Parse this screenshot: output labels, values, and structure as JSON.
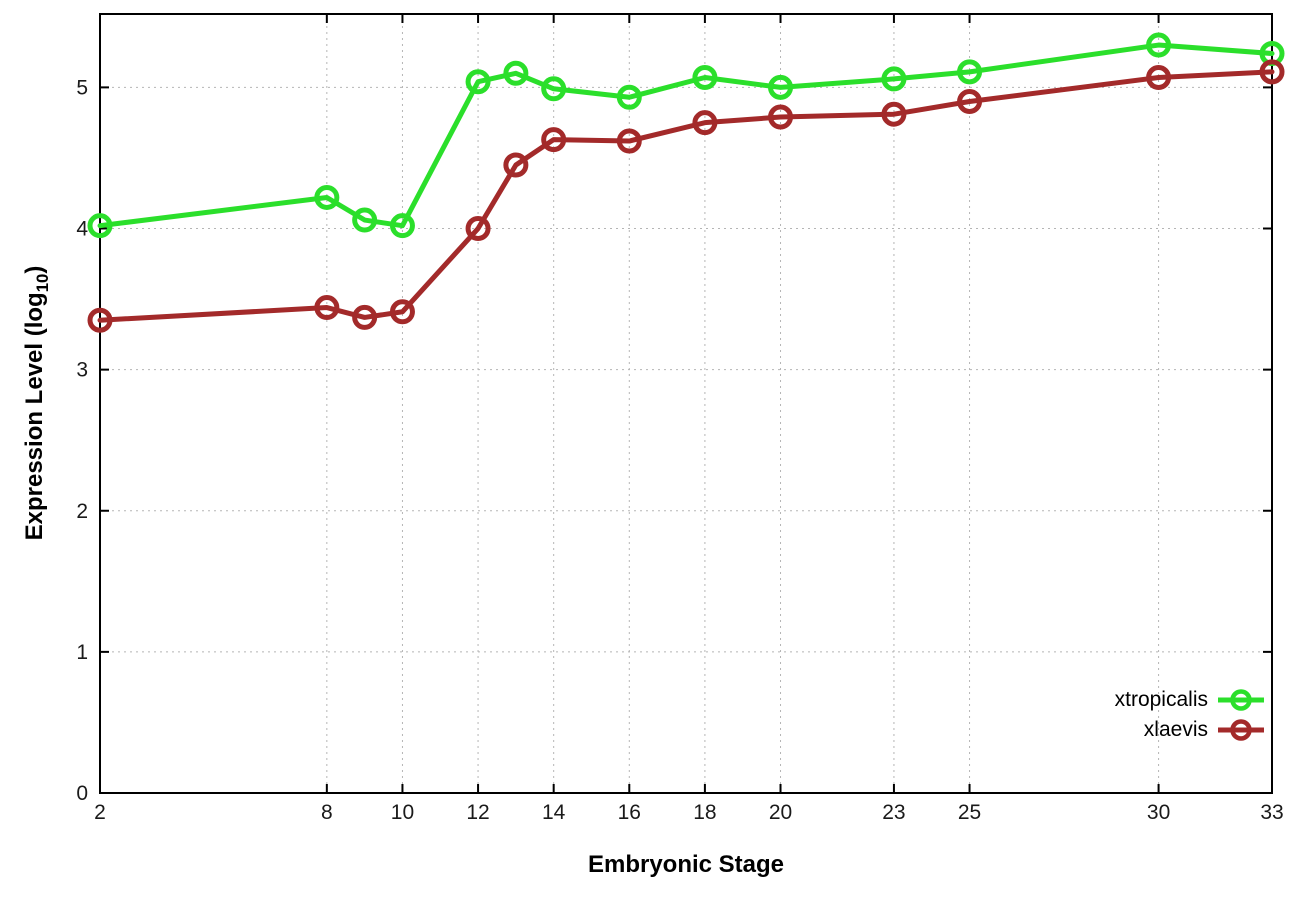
{
  "page": {
    "background": "#ffffff"
  },
  "chart_data": {
    "type": "line",
    "title": "",
    "xlabel": "Embryonic Stage",
    "ylabel": "Expression Level (log10)",
    "ylabel_parts": {
      "prefix": "Expression Level (log",
      "sub": "10",
      "suffix": ")"
    },
    "x_tick_labels": [
      "2",
      "8",
      "10",
      "12",
      "14",
      "16",
      "18",
      "20",
      "23",
      "25",
      "30",
      "33"
    ],
    "x_tick_values": [
      2,
      8,
      10,
      12,
      14,
      16,
      18,
      20,
      23,
      25,
      30,
      33
    ],
    "y_tick_labels": [
      "0",
      "1",
      "2",
      "3",
      "4",
      "5"
    ],
    "y_tick_values": [
      0,
      1,
      2,
      3,
      4,
      5
    ],
    "xlim": [
      2,
      33
    ],
    "ylim": [
      0,
      5.52
    ],
    "grid": true,
    "legend_position": "inside bottom-right",
    "x": [
      2,
      8,
      9,
      10,
      12,
      13,
      14,
      16,
      18,
      20,
      23,
      25,
      30,
      33
    ],
    "series": [
      {
        "name": "xtropicalis",
        "color": "#2bdf2b",
        "marker": "open-circle",
        "values": [
          4.02,
          4.22,
          4.06,
          4.02,
          5.04,
          5.1,
          4.99,
          4.93,
          5.07,
          5.0,
          5.06,
          5.11,
          5.3,
          5.24
        ]
      },
      {
        "name": "xlaevis",
        "color": "#a32a2a",
        "marker": "open-circle",
        "values": [
          3.35,
          3.44,
          3.37,
          3.41,
          4.0,
          4.45,
          4.63,
          4.62,
          4.75,
          4.79,
          4.81,
          4.9,
          5.07,
          5.11
        ]
      }
    ],
    "axis_color": "#000000",
    "grid_color": "#b5b5b5",
    "tick_label_color": "#1a1a1a"
  }
}
